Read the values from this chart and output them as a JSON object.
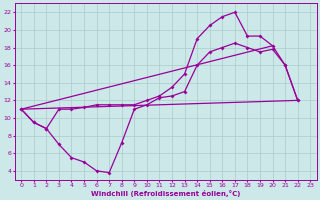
{
  "xlabel": "Windchill (Refroidissement éolien,°C)",
  "background_color": "#cce8e8",
  "grid_color": "#aacccc",
  "line_color": "#990099",
  "xlim": [
    -0.5,
    23.5
  ],
  "ylim": [
    3,
    23
  ],
  "xticks": [
    0,
    1,
    2,
    3,
    4,
    5,
    6,
    7,
    8,
    9,
    10,
    11,
    12,
    13,
    14,
    15,
    16,
    17,
    18,
    19,
    20,
    21,
    22,
    23
  ],
  "yticks": [
    4,
    6,
    8,
    10,
    12,
    14,
    16,
    18,
    20,
    22
  ],
  "line1_x": [
    0,
    1,
    2,
    3,
    4,
    5,
    6,
    7,
    8,
    9,
    10,
    11,
    12,
    13,
    14,
    15,
    16,
    17,
    18,
    19,
    20,
    21,
    22
  ],
  "line1_y": [
    11,
    9.5,
    8.8,
    7.0,
    5.5,
    5.0,
    4.0,
    3.8,
    7.2,
    11.0,
    11.5,
    12.3,
    12.5,
    13.0,
    16.0,
    17.5,
    18.0,
    18.5,
    18.0,
    17.5,
    17.8,
    16.0,
    12.0
  ],
  "line2_x": [
    0,
    1,
    2,
    3,
    4,
    5,
    6,
    7,
    8,
    9,
    10,
    11,
    12,
    13,
    14,
    15,
    16,
    17,
    18,
    19,
    20,
    21,
    22
  ],
  "line2_y": [
    11,
    9.5,
    8.8,
    11.0,
    11.0,
    11.2,
    11.5,
    11.5,
    11.5,
    11.5,
    12.0,
    12.5,
    13.5,
    15.0,
    19.0,
    20.5,
    21.5,
    22.0,
    19.3,
    19.3,
    18.2,
    16.0,
    12.0
  ],
  "line3_x": [
    0,
    22
  ],
  "line3_y": [
    11,
    12
  ],
  "line4_x": [
    0,
    20
  ],
  "line4_y": [
    11,
    18.2
  ]
}
